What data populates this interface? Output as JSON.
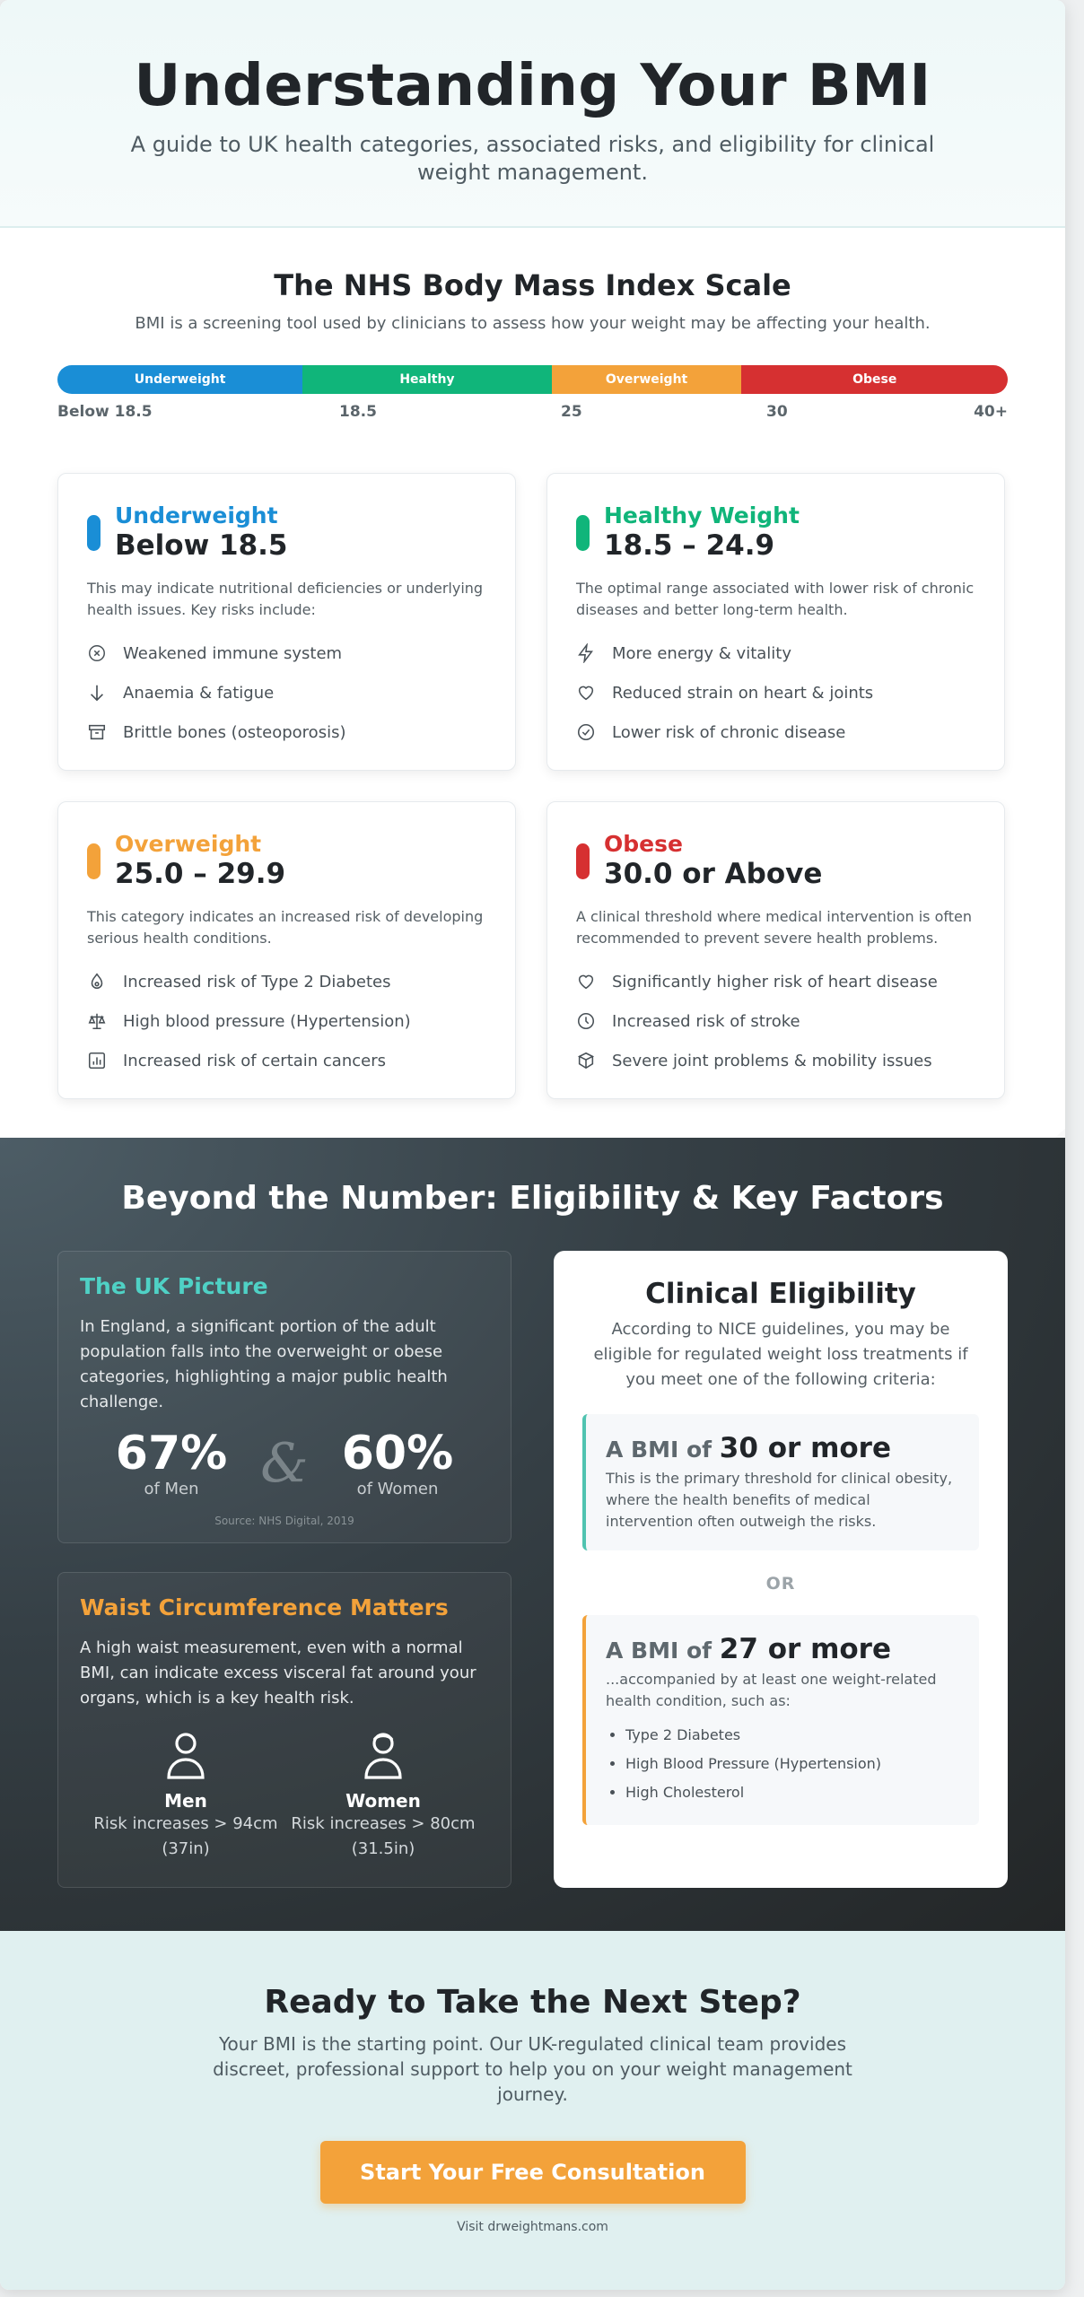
{
  "hero": {
    "title": "Understanding Your BMI",
    "subtitle": "A guide to UK health categories, associated risks, and eligibility for clinical weight management."
  },
  "scale": {
    "title": "The NHS Body Mass Index Scale",
    "subtitle": "BMI is a screening tool used by clinicians to assess how your weight may be affecting your health.",
    "segments": [
      {
        "label": "Underweight",
        "color": "#1a8ed6",
        "share": 0.258
      },
      {
        "label": "Healthy",
        "color": "#10b57a",
        "share": 0.262
      },
      {
        "label": "Overweight",
        "color": "#f3a23a",
        "share": 0.2
      },
      {
        "label": "Obese",
        "color": "#d63031",
        "share": 0.28
      }
    ],
    "ticks": [
      "Below 18.5",
      "18.5",
      "25",
      "30",
      "40+"
    ]
  },
  "cards": [
    {
      "title": "Underweight",
      "range": "Below 18.5",
      "color": "#1a8ed6",
      "desc": "This may indicate nutritional deficiencies or underlying health issues. Key risks include:",
      "risks": [
        {
          "icon": "virus-icon",
          "text": "Weakened immune system"
        },
        {
          "icon": "arrow-down-icon",
          "text": "Anaemia & fatigue"
        },
        {
          "icon": "archive-icon",
          "text": "Brittle bones (osteoporosis)"
        }
      ]
    },
    {
      "title": "Healthy Weight",
      "range": "18.5 – 24.9",
      "color": "#10b57a",
      "desc": "The optimal range associated with lower risk of chronic diseases and better long-term health.",
      "risks": [
        {
          "icon": "lightning-icon",
          "text": "More energy & vitality"
        },
        {
          "icon": "heart-icon",
          "text": "Reduced strain on heart & joints"
        },
        {
          "icon": "check-circle-icon",
          "text": "Lower risk of chronic disease"
        }
      ]
    },
    {
      "title": "Overweight",
      "range": "25.0 – 29.9",
      "color": "#f3a23a",
      "desc": "This category indicates an increased risk of developing serious health conditions.",
      "risks": [
        {
          "icon": "droplet-icon",
          "text": "Increased risk of Type 2 Diabetes"
        },
        {
          "icon": "scales-icon",
          "text": "High blood pressure (Hypertension)"
        },
        {
          "icon": "chart-icon",
          "text": "Increased risk of certain cancers"
        }
      ]
    },
    {
      "title": "Obese",
      "range": "30.0 or Above",
      "color": "#d63031",
      "desc": "A clinical threshold where medical intervention is often recommended to prevent severe health problems.",
      "risks": [
        {
          "icon": "heart-icon",
          "text": "Significantly higher risk of heart disease"
        },
        {
          "icon": "clock-icon",
          "text": "Increased risk of stroke"
        },
        {
          "icon": "box-icon",
          "text": "Severe joint problems & mobility issues"
        }
      ]
    }
  ],
  "factors": {
    "title": "Beyond the Number: Eligibility & Key Factors",
    "uk": {
      "title": "The UK Picture",
      "title_color": "#4fd1c5",
      "text": "In England, a significant portion of the adult population falls into the overweight or obese categories, highlighting a major public health challenge.",
      "men_value": "67%",
      "men_label": "of Men",
      "amp": "&",
      "women_value": "60%",
      "women_label": "of Women",
      "source": "Source: NHS Digital, 2019"
    },
    "waist": {
      "title": "Waist Circumference Matters",
      "title_color": "#f3a23a",
      "text": "A high waist measurement, even with a normal BMI, can indicate excess visceral fat around your organs, which is a key health risk.",
      "men_title": "Men",
      "men_risk": "Risk increases > 94cm (37in)",
      "women_title": "Women",
      "women_risk": "Risk increases > 80cm (31.5in)"
    },
    "eligibility": {
      "title": "Clinical Eligibility",
      "intro": "According to NICE guidelines, you may be eligible for regulated weight loss treatments if you meet one of the following criteria:",
      "c1_prefix": "A BMI of",
      "c1_value": "30 or more",
      "c1_desc": "This is the primary threshold for clinical obesity, where the health benefits of medical intervention often outweigh the risks.",
      "c1_color": "#4fc3b0",
      "or": "OR",
      "c2_prefix": "A BMI of",
      "c2_value": "27 or more",
      "c2_desc": "...accompanied by at least one weight-related health condition, such as:",
      "c2_color": "#f3a23a",
      "conditions": [
        "Type 2 Diabetes",
        "High Blood Pressure (Hypertension)",
        "High Cholesterol"
      ]
    }
  },
  "cta": {
    "title": "Ready to Take the Next Step?",
    "text": "Your BMI is the starting point. Our UK-regulated clinical team provides discreet, professional support to help you on your weight management journey.",
    "button": "Start Your Free Consultation",
    "visit": "Visit drweightmans.com"
  },
  "watermark": "drweightmans.com"
}
